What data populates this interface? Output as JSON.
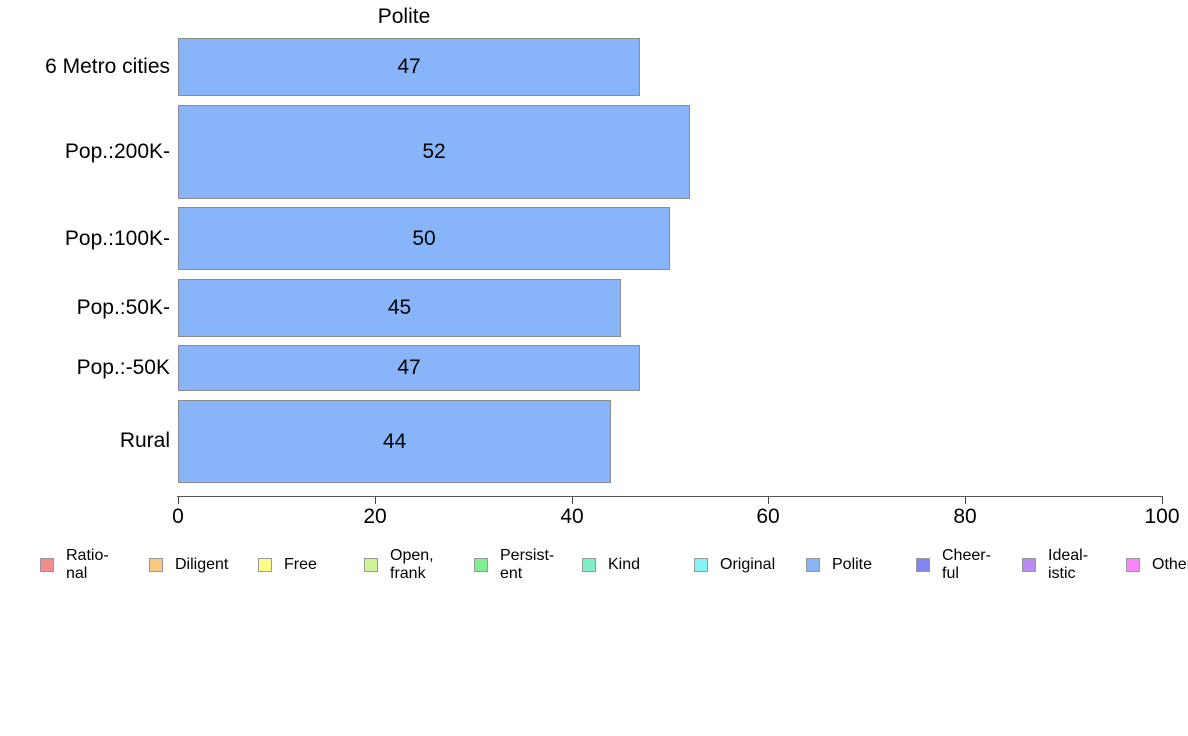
{
  "chart_data": {
    "type": "bar",
    "orientation": "horizontal",
    "title": "Polite",
    "categories": [
      "6 Metro cities",
      "Pop.:200K-",
      "Pop.:100K-",
      "Pop.:50K-",
      "Pop.:-50K",
      "Rural"
    ],
    "values": [
      47,
      52,
      50,
      45,
      47,
      44
    ],
    "xlim": [
      0,
      100
    ],
    "x_ticks": [
      0,
      20,
      40,
      60,
      80,
      100
    ],
    "grid": "off",
    "bar_color": "#88B5FA",
    "bar_border_color": "#8C8C8C",
    "bar_thickness_px": [
      58,
      94,
      63,
      58,
      46,
      83
    ],
    "legend_position": "bottom",
    "legend": [
      {
        "label": "Rational",
        "lines": [
          "Ratio-",
          "nal"
        ],
        "color": "#F28D8D"
      },
      {
        "label": "Diligent",
        "lines": [
          "Diligent"
        ],
        "color": "#FAC885"
      },
      {
        "label": "Free",
        "lines": [
          "Free"
        ],
        "color": "#FDFD8C"
      },
      {
        "label": "Open, frank",
        "lines": [
          "Open,",
          "frank"
        ],
        "color": "#CBF495"
      },
      {
        "label": "Persistent",
        "lines": [
          "Persist-",
          "ent"
        ],
        "color": "#7EF093"
      },
      {
        "label": "Kind",
        "lines": [
          "Kind"
        ],
        "color": "#7FF0C6"
      },
      {
        "label": "Original",
        "lines": [
          "Original"
        ],
        "color": "#85F3F3"
      },
      {
        "label": "Polite",
        "lines": [
          "Polite"
        ],
        "color": "#88B5FA"
      },
      {
        "label": "Cheerful",
        "lines": [
          "Cheer-",
          "ful"
        ],
        "color": "#8383F1"
      },
      {
        "label": "Idealistic",
        "lines": [
          "Ideal-",
          "istic"
        ],
        "color": "#B98CF3"
      },
      {
        "label": "Other",
        "lines": [
          "Other"
        ],
        "color": "#FB85FB"
      }
    ]
  }
}
